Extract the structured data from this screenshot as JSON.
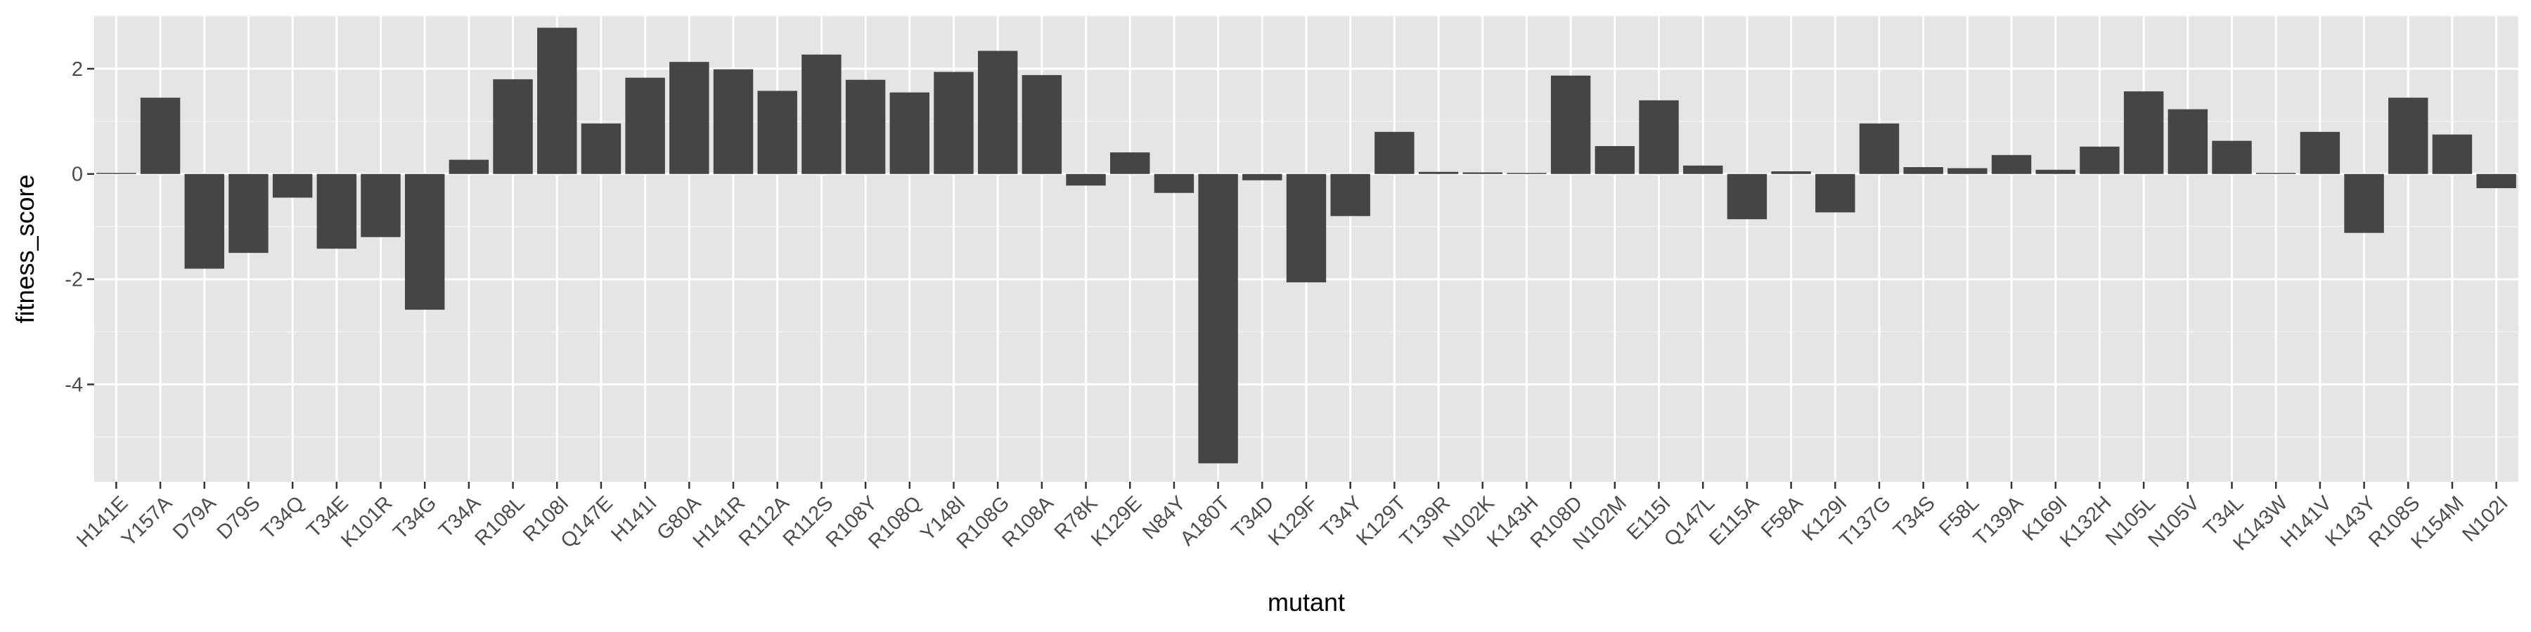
{
  "chart_data": {
    "type": "bar",
    "xlabel": "mutant",
    "ylabel": "fitness_score",
    "ylim": [
      -5.85,
      3.0
    ],
    "yticks": [
      -4,
      -2,
      0,
      2
    ],
    "grid": true,
    "legend": "none",
    "colors": {
      "bar": "#454545",
      "panel": "#e5e5e5",
      "grid_major": "#ffffff",
      "grid_minor": "#f2f2f2"
    },
    "categories": [
      "H141E",
      "Y157A",
      "D79A",
      "D79S",
      "T34Q",
      "T34E",
      "K101R",
      "T34G",
      "T34A",
      "R108L",
      "R108I",
      "Q147E",
      "H141I",
      "G80A",
      "H141R",
      "R112A",
      "R112S",
      "R108Y",
      "R108Q",
      "Y148I",
      "R108G",
      "R108A",
      "R78K",
      "K129E",
      "N84Y",
      "A180T",
      "T34D",
      "K129F",
      "T34Y",
      "K129T",
      "T139R",
      "N102K",
      "K143H",
      "R108D",
      "N102M",
      "E115I",
      "Q147L",
      "E115A",
      "F58A",
      "K129I",
      "T137G",
      "T34S",
      "F58L",
      "T139A",
      "K169I",
      "K132H",
      "N105L",
      "N105V",
      "T34L",
      "K143W",
      "H141V",
      "K143Y",
      "R108S",
      "K154M",
      "N102I"
    ],
    "values": [
      0.02,
      1.45,
      -1.8,
      -1.5,
      -0.45,
      -1.42,
      -1.2,
      -2.58,
      0.27,
      1.8,
      2.78,
      0.96,
      1.83,
      2.13,
      1.99,
      1.58,
      2.27,
      1.79,
      1.55,
      1.94,
      2.34,
      1.88,
      -0.22,
      0.41,
      -0.36,
      -5.5,
      -0.12,
      -2.06,
      -0.8,
      0.8,
      0.04,
      0.03,
      0.02,
      1.87,
      0.53,
      1.4,
      0.16,
      -0.86,
      0.05,
      -0.73,
      0.96,
      0.13,
      0.11,
      0.36,
      0.08,
      0.52,
      1.57,
      1.23,
      0.63,
      0.02,
      0.8,
      -1.12,
      1.45,
      0.75,
      -0.27
    ]
  }
}
